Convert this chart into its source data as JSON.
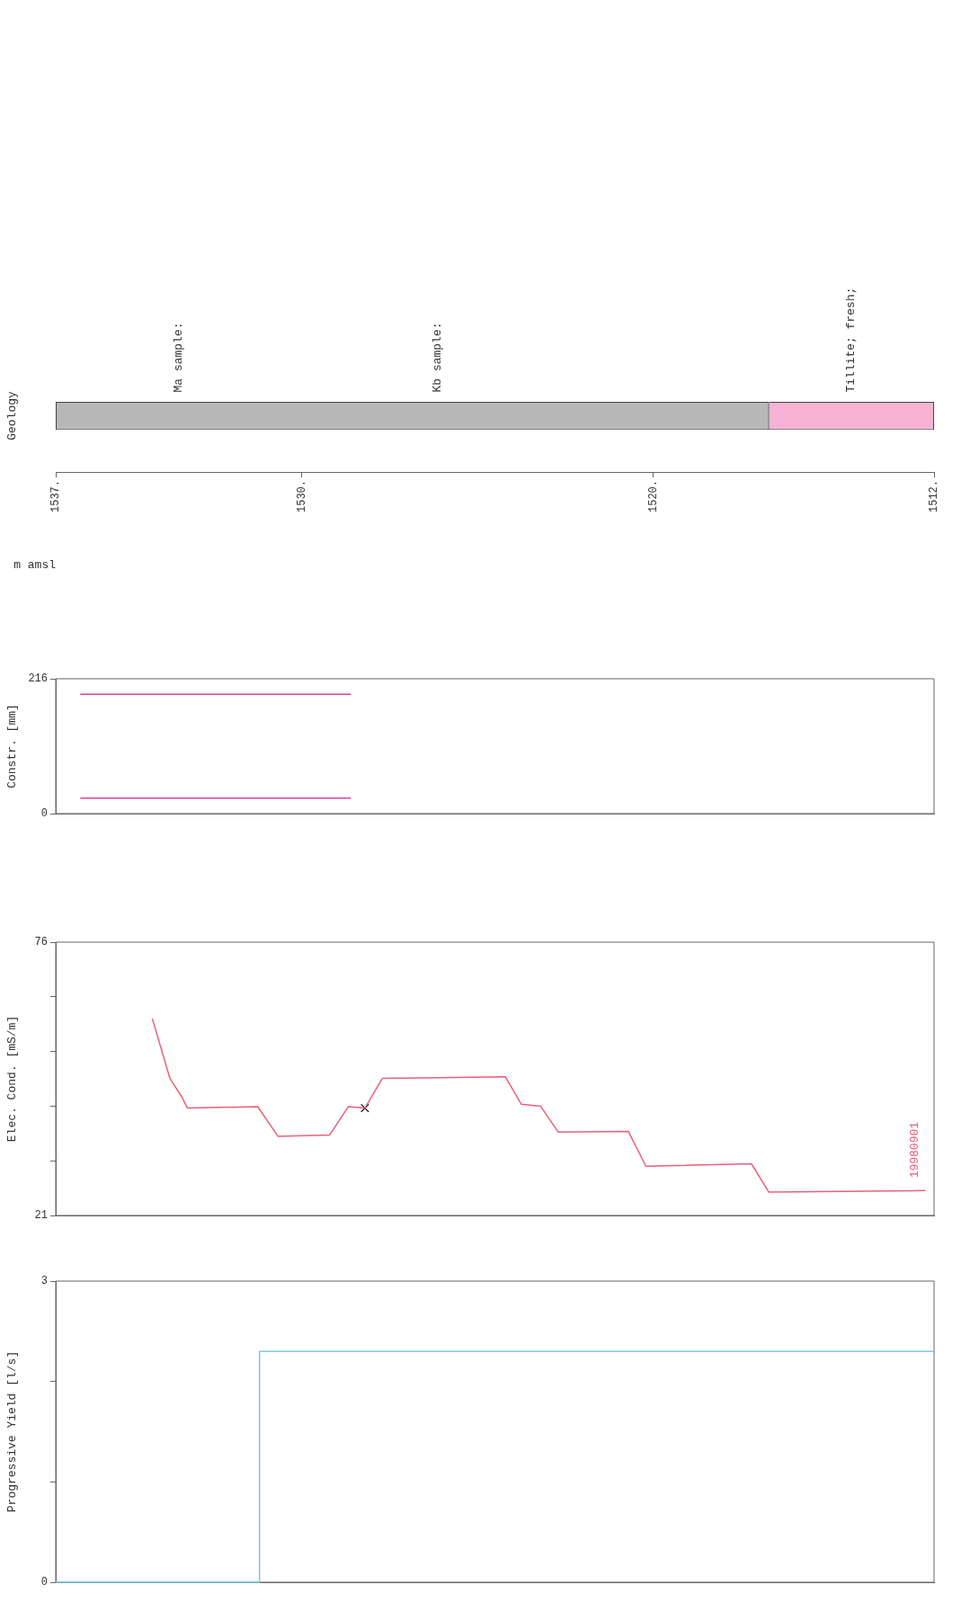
{
  "chart_data": [
    {
      "type": "bar",
      "orientation": "horizontal",
      "ylabel": "Geology",
      "xlabel": "m amsl",
      "categories": [
        null
      ],
      "legend": false,
      "grid": false,
      "xlim": [
        1537,
        1512
      ],
      "xticks": [
        {
          "value": 1537,
          "label": "1537."
        },
        {
          "value": 1530,
          "label": "1530."
        },
        {
          "value": 1520,
          "label": "1520."
        },
        {
          "value": 1512,
          "label": "1512."
        }
      ],
      "series": [
        {
          "color": "#b8b8b8",
          "base": [
            1537
          ],
          "values": [
            -20.3
          ]
        },
        {
          "color": "#f6b3d6",
          "base": [
            1516.7
          ],
          "values": [
            -4.7
          ]
        }
      ],
      "annotations": [
        "Ma sample:",
        "Kb sample:",
        "Tillite; fresh;"
      ]
    },
    {
      "type": "line",
      "ylabel": "Constr. [mm]",
      "ylim": [
        0,
        216
      ],
      "yticks": [
        0,
        216
      ],
      "xlim": [
        1537,
        1512
      ],
      "tick_labels": "y",
      "marker": "none",
      "legend": false,
      "grid": false,
      "series": [
        {
          "color": "#e0409a",
          "x": [
            1536.3,
            1528.6
          ],
          "values": [
            191,
            191
          ]
        },
        {
          "color": "#e0409a",
          "x": [
            1536.3,
            1528.6
          ],
          "values": [
            25,
            25
          ]
        }
      ]
    },
    {
      "type": "line",
      "ylabel": "Elec. Cond. [mS/m]",
      "ylim": [
        21,
        76
      ],
      "yticks": [
        21,
        {
          "value": 32,
          "label": null
        },
        {
          "value": 43,
          "label": null
        },
        {
          "value": 54,
          "label": null
        },
        {
          "value": 65,
          "label": null
        },
        76
      ],
      "xlim": [
        1537,
        1512
      ],
      "tick_labels": "y",
      "marker": "none",
      "legend": false,
      "grid": false,
      "series": [
        {
          "name": "19980901",
          "color": "#e8607a",
          "x": [
            1534.25,
            1533.75,
            1533.4,
            1533.25,
            1531.25,
            1530.67,
            1529.2,
            1528.67,
            1528.2,
            1527.7,
            1524.2,
            1523.75,
            1523.2,
            1522.7,
            1520.7,
            1520.2,
            1517.2,
            1516.7,
            1512.25
          ],
          "values": [
            60.6,
            48.6,
            44.7,
            42.6,
            42.9,
            36.9,
            37.2,
            42.9,
            42.6,
            48.6,
            48.9,
            43.4,
            43.0,
            37.8,
            37.9,
            30.9,
            31.4,
            25.7,
            26.0
          ]
        },
        {
          "type": "scatter",
          "marker": "cross",
          "color": "#000000",
          "x": [
            1528.2
          ],
          "values": [
            42.6
          ]
        }
      ]
    },
    {
      "type": "line",
      "ylabel": "Progressive Yield [l/s]",
      "ylim": [
        0,
        3
      ],
      "yticks": [
        0,
        {
          "value": 1,
          "label": null
        },
        {
          "value": 2,
          "label": null
        },
        3
      ],
      "xlim": [
        1537,
        1512
      ],
      "tick_labels": "y",
      "marker": "none",
      "legend": false,
      "grid": false,
      "series": [
        {
          "color": "#7ec8e0",
          "x": [
            1537,
            1531.2,
            1531.2,
            1512
          ],
          "values": [
            0,
            0,
            2.3,
            2.3
          ]
        }
      ]
    }
  ]
}
